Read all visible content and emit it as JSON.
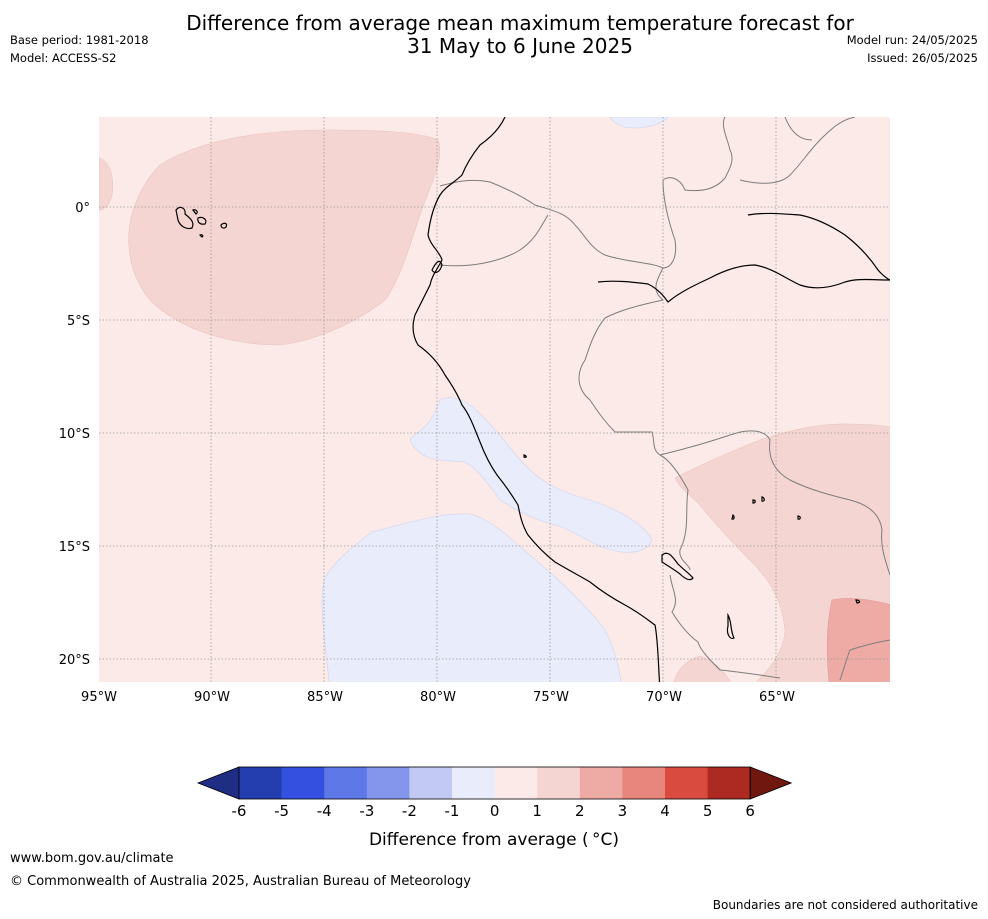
{
  "header": {
    "title_line1": "Difference from average mean maximum temperature forecast for",
    "title_line2": "31 May to 6 June 2025",
    "base_period": "Base period: 1981-2018",
    "model": "Model: ACCESS-S2",
    "model_run": "Model run: 24/05/2025",
    "issued": "Issued: 26/05/2025"
  },
  "map": {
    "lat_labels": [
      "0°",
      "5°S",
      "10°S",
      "15°S",
      "20°S"
    ],
    "lon_labels": [
      "95°W",
      "90°W",
      "85°W",
      "80°W",
      "75°W",
      "70°W",
      "65°W"
    ],
    "background_color": "#fbeae7"
  },
  "legend": {
    "title": "Difference from average ( °C)",
    "ticks": [
      "-6",
      "-5",
      "-4",
      "-3",
      "-2",
      "-1",
      "0",
      "1",
      "2",
      "3",
      "4",
      "5",
      "6"
    ],
    "colors": [
      "#1f2d85",
      "#243eb0",
      "#3350e0",
      "#5e78e8",
      "#8496ec",
      "#c3c9f5",
      "#e9ecfb",
      "#fbeae7",
      "#f5d5d2",
      "#eeaba6",
      "#e8867e",
      "#d94a3f",
      "#ac2a22",
      "#70170f"
    ]
  },
  "footer": {
    "url": "www.bom.gov.au/climate",
    "copyright": "© Commonwealth of Australia 2025, Australian Bureau of Meteorology",
    "note": "Boundaries are not considered authoritative"
  }
}
